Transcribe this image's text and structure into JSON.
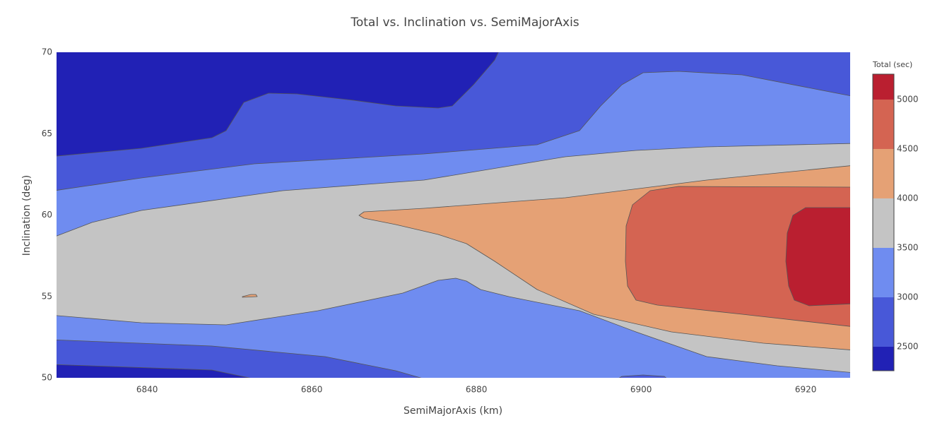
{
  "chart_data": {
    "type": "contour",
    "title": "Total vs. Inclination vs. SemiMajorAxis",
    "x_label": "SemiMajorAxis (km)",
    "y_label": "Inclination (deg)",
    "xlim": [
      6829,
      6925.4
    ],
    "ylim": [
      50,
      70
    ],
    "xticks": [
      6840,
      6860,
      6880,
      6900,
      6920
    ],
    "yticks": [
      50,
      55,
      60,
      65,
      70
    ],
    "colorbar": {
      "title": "Total (sec)",
      "lim": [
        2257,
        5257
      ],
      "ticks": [
        2500,
        3000,
        3500,
        4000,
        4500,
        5000
      ],
      "colors": [
        "#2121b5",
        "#4858d8",
        "#6f8cf0",
        "#c4c4c4",
        "#e5a175",
        "#d46452",
        "#ba1f30"
      ]
    }
  }
}
